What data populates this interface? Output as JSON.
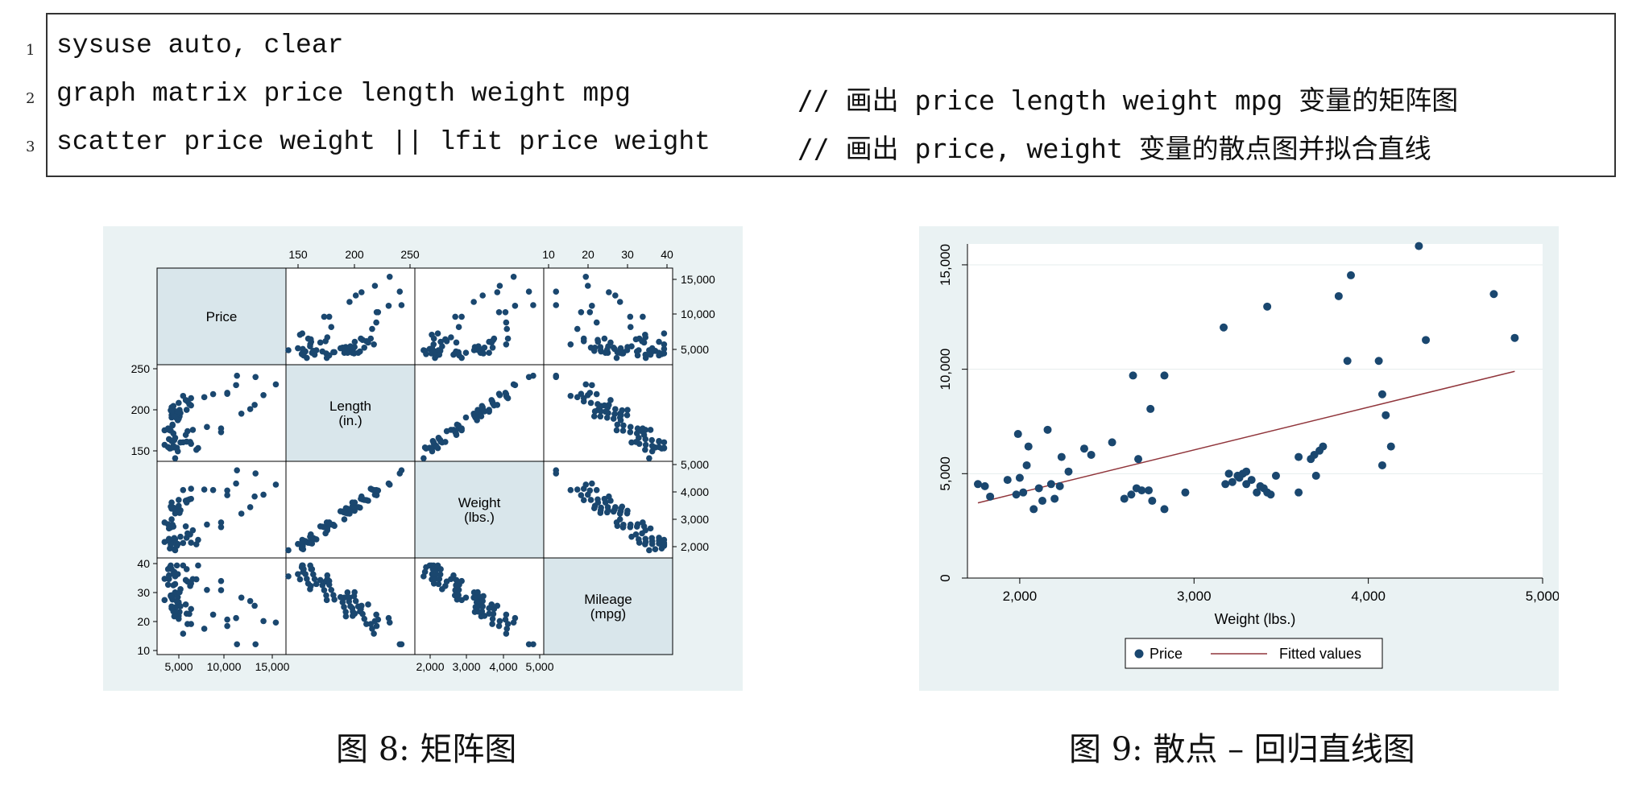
{
  "code": {
    "lines": [
      {
        "no": "1",
        "code": "sysuse auto, clear",
        "comment": ""
      },
      {
        "no": "2",
        "code": "graph matrix price length weight mpg",
        "comment": "// 画出 price length weight mpg 变量的矩阵图"
      },
      {
        "no": "3",
        "code": "scatter price weight || lfit price weight",
        "comment": "// 画出 price, weight 变量的散点图并拟合直线"
      }
    ]
  },
  "colors": {
    "marker": "#1a476f",
    "fit_line": "#90353b",
    "plot_bg": "#eaf2f3",
    "diag_bg": "#d9e6eb"
  },
  "captions": {
    "matrix": "图 8: 矩阵图",
    "scatter": "图 9: 散点 – 回归直线图"
  },
  "matrix": {
    "diag_labels": [
      "Price",
      "Length\n(in.)",
      "Weight\n(lbs.)",
      "Mileage\n(mpg)"
    ],
    "top_ticks_length": [
      "150",
      "200",
      "250"
    ],
    "top_ticks_mpg": [
      "10",
      "20",
      "30",
      "40"
    ],
    "right_ticks_price": [
      "15,000",
      "10,000",
      "5,000"
    ],
    "right_ticks_weight": [
      "5,000",
      "4,000",
      "3,000",
      "2,000"
    ],
    "left_ticks_length": [
      "250",
      "200",
      "150"
    ],
    "left_ticks_mpg": [
      "40",
      "30",
      "20",
      "10"
    ],
    "bottom_ticks_price": [
      "5,000",
      "10,000",
      "15,000"
    ],
    "bottom_ticks_weight": [
      "2,000",
      "3,000",
      "4,000",
      "5,000"
    ]
  },
  "chart_data": [
    {
      "type": "scatter",
      "title": "",
      "xlabel": "Weight (lbs.)",
      "ylabel": "",
      "xlim": [
        1700,
        5000
      ],
      "ylim": [
        0,
        16000
      ],
      "xticks": [
        "2,000",
        "3,000",
        "4,000",
        "5,000"
      ],
      "yticks": [
        "0",
        "5,000",
        "10,000",
        "15,000"
      ],
      "grid": "horizontal",
      "legend": "bottom",
      "series": [
        {
          "name": "Price",
          "kind": "points",
          "points": [
            [
              1760,
              4500
            ],
            [
              1800,
              4400
            ],
            [
              1830,
              3900
            ],
            [
              1930,
              4700
            ],
            [
              1980,
              4000
            ],
            [
              1990,
              6900
            ],
            [
              2000,
              4800
            ],
            [
              2020,
              4100
            ],
            [
              2040,
              5400
            ],
            [
              2050,
              6300
            ],
            [
              2080,
              3300
            ],
            [
              2110,
              4300
            ],
            [
              2130,
              3700
            ],
            [
              2160,
              7100
            ],
            [
              2180,
              4500
            ],
            [
              2200,
              3800
            ],
            [
              2230,
              4400
            ],
            [
              2240,
              5800
            ],
            [
              2280,
              5100
            ],
            [
              2370,
              6200
            ],
            [
              2410,
              5900
            ],
            [
              2530,
              6500
            ],
            [
              2600,
              3800
            ],
            [
              2640,
              4000
            ],
            [
              2650,
              9700
            ],
            [
              2670,
              4300
            ],
            [
              2680,
              5700
            ],
            [
              2700,
              4200
            ],
            [
              2740,
              4200
            ],
            [
              2750,
              8100
            ],
            [
              2760,
              3700
            ],
            [
              2830,
              9700
            ],
            [
              2830,
              3300
            ],
            [
              2950,
              4100
            ],
            [
              3170,
              12000
            ],
            [
              3180,
              4500
            ],
            [
              3200,
              5000
            ],
            [
              3220,
              4600
            ],
            [
              3250,
              4900
            ],
            [
              3260,
              4800
            ],
            [
              3280,
              5000
            ],
            [
              3300,
              4500
            ],
            [
              3300,
              5100
            ],
            [
              3330,
              4700
            ],
            [
              3360,
              4100
            ],
            [
              3380,
              4400
            ],
            [
              3400,
              4300
            ],
            [
              3420,
              4100
            ],
            [
              3420,
              13000
            ],
            [
              3440,
              4000
            ],
            [
              3470,
              4900
            ],
            [
              3600,
              5800
            ],
            [
              3600,
              4100
            ],
            [
              3670,
              5700
            ],
            [
              3690,
              5900
            ],
            [
              3700,
              4900
            ],
            [
              3720,
              6100
            ],
            [
              3740,
              6300
            ],
            [
              3830,
              13500
            ],
            [
              3880,
              10400
            ],
            [
              3900,
              14500
            ],
            [
              4060,
              10400
            ],
            [
              4080,
              8800
            ],
            [
              4080,
              5400
            ],
            [
              4100,
              7800
            ],
            [
              4130,
              6300
            ],
            [
              4290,
              15900
            ],
            [
              4330,
              11400
            ],
            [
              4720,
              13600
            ],
            [
              4840,
              11500
            ]
          ]
        },
        {
          "name": "Fitted values",
          "kind": "line",
          "points": [
            [
              1760,
              3600
            ],
            [
              4840,
              9900
            ]
          ]
        }
      ]
    }
  ]
}
